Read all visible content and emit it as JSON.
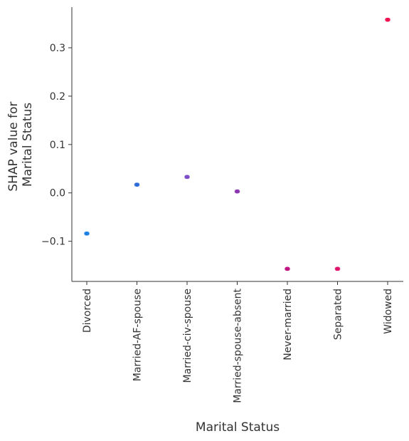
{
  "chart_data": {
    "type": "scatter",
    "title": "",
    "xlabel": "Marital Status",
    "ylabel_lines": [
      "SHAP value for",
      "Marital Status"
    ],
    "categories": [
      "Divorced",
      "Married-AF-spouse",
      "Married-civ-spouse",
      "Married-spouse-absent",
      "Never-married",
      "Separated",
      "Widowed"
    ],
    "values": [
      -0.084,
      0.017,
      0.033,
      0.003,
      -0.157,
      -0.157,
      0.358
    ],
    "point_colors": [
      "#1a7fe0",
      "#2a6ad8",
      "#7a4ec8",
      "#8a34b0",
      "#c01480",
      "#e0106a",
      "#f01050"
    ],
    "yticks": [
      -0.1,
      0.0,
      0.1,
      0.2,
      0.3
    ],
    "ytick_labels": [
      "−0.1",
      "0.0",
      "0.1",
      "0.2",
      "0.3"
    ],
    "ylim": [
      -0.183,
      0.384
    ],
    "grid": false,
    "legend": "none"
  }
}
